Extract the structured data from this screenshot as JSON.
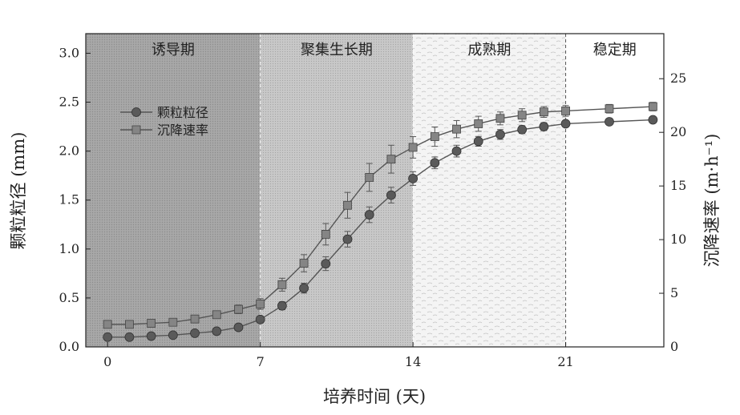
{
  "chart_data": {
    "type": "line",
    "xlabel": "培养时间 (天)",
    "ylabel": "颗粒粒径 (mm)",
    "y2label": "沉降速率 (m·h⁻¹)",
    "xlim": [
      -1,
      25.5
    ],
    "ylim": [
      0,
      3.2
    ],
    "y2lim": [
      0,
      29.2
    ],
    "xticks": [
      0,
      7,
      14,
      21
    ],
    "yticks": [
      0.0,
      0.5,
      1.0,
      1.5,
      2.0,
      2.5,
      3.0
    ],
    "y2ticks": [
      0,
      5,
      10,
      15,
      20,
      25
    ],
    "phases": [
      {
        "label": "诱导期",
        "start": -1,
        "end": 7,
        "fill": "#b4b4b4"
      },
      {
        "label": "聚集生长期",
        "start": 7,
        "end": 14,
        "fill": "#cfcfcf"
      },
      {
        "label": "成熟期",
        "start": 14,
        "end": 21,
        "fill": "#ececec"
      },
      {
        "label": "稳定期",
        "start": 21,
        "end": 25.5,
        "fill": "#ffffff"
      }
    ],
    "legend_position": "upper-left",
    "series": [
      {
        "name": "颗粒粒径",
        "axis": "left",
        "marker": "circle",
        "color": "#5a5a5a",
        "x": [
          0,
          1,
          2,
          3,
          4,
          5,
          6,
          7,
          8,
          9,
          10,
          11,
          12,
          13,
          14,
          15,
          16,
          17,
          18,
          19,
          20,
          21,
          23,
          25
        ],
        "y": [
          0.1,
          0.1,
          0.11,
          0.12,
          0.14,
          0.16,
          0.2,
          0.28,
          0.42,
          0.6,
          0.85,
          1.1,
          1.35,
          1.55,
          1.72,
          1.88,
          2.0,
          2.1,
          2.17,
          2.22,
          2.25,
          2.28,
          2.3,
          2.32
        ],
        "err": [
          0.02,
          0.02,
          0.02,
          0.02,
          0.02,
          0.03,
          0.03,
          0.03,
          0.04,
          0.05,
          0.07,
          0.08,
          0.08,
          0.08,
          0.07,
          0.06,
          0.06,
          0.05,
          0.05,
          0.04,
          0.04,
          0.03,
          0.03,
          0.03
        ]
      },
      {
        "name": "沉降速率",
        "axis": "right",
        "marker": "square",
        "color": "#858585",
        "x": [
          0,
          1,
          2,
          3,
          4,
          5,
          6,
          7,
          8,
          9,
          10,
          11,
          12,
          13,
          14,
          15,
          16,
          17,
          18,
          19,
          20,
          21,
          23,
          25
        ],
        "y": [
          2.1,
          2.1,
          2.2,
          2.3,
          2.6,
          3.0,
          3.5,
          4.0,
          5.8,
          7.8,
          10.5,
          13.2,
          15.8,
          17.5,
          18.6,
          19.6,
          20.3,
          20.8,
          21.3,
          21.6,
          21.9,
          22.0,
          22.2,
          22.4
        ],
        "err": [
          0.3,
          0.3,
          0.3,
          0.3,
          0.3,
          0.3,
          0.4,
          0.5,
          0.6,
          0.8,
          1.0,
          1.2,
          1.3,
          1.3,
          1.0,
          0.9,
          0.8,
          0.7,
          0.6,
          0.6,
          0.5,
          0.5,
          0.4,
          0.4
        ]
      }
    ]
  }
}
